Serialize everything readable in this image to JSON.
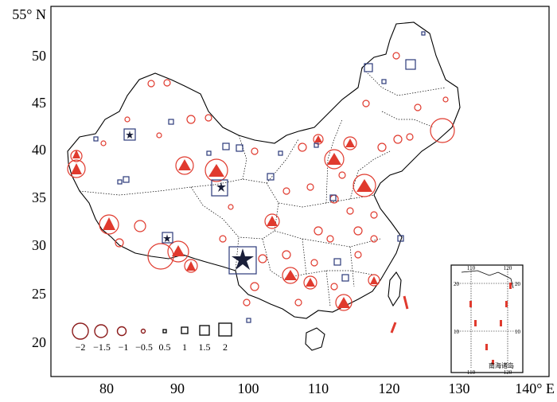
{
  "map": {
    "axis": {
      "x_unit": "E",
      "y_unit": "N",
      "x_ticks": [
        "80",
        "90",
        "100",
        "110",
        "120",
        "130"
      ],
      "y_ticks": [
        "55° N",
        "50",
        "45",
        "40",
        "35",
        "30",
        "25",
        "20"
      ],
      "x_last_label": "140° E"
    },
    "extent": {
      "lon_range": [
        72,
        140
      ],
      "lat_range": [
        15,
        55
      ]
    },
    "legend": {
      "values": [
        "−2",
        "−1.5",
        "−1",
        "−0.5",
        "0.5",
        "1",
        "1.5",
        "2"
      ],
      "negative_symbol": "circle",
      "positive_symbol": "square"
    },
    "inset": {
      "title": "南海诸岛",
      "ticks_top": [
        "110",
        "120"
      ],
      "ticks_bottom": [
        "110",
        "120"
      ],
      "ticks_left": [
        "20",
        "10"
      ],
      "ticks_right": [
        "20",
        "10"
      ]
    },
    "colors": {
      "negative": "#e03a2e",
      "positive": "#2b3a7a",
      "frame": "#000000"
    }
  }
}
